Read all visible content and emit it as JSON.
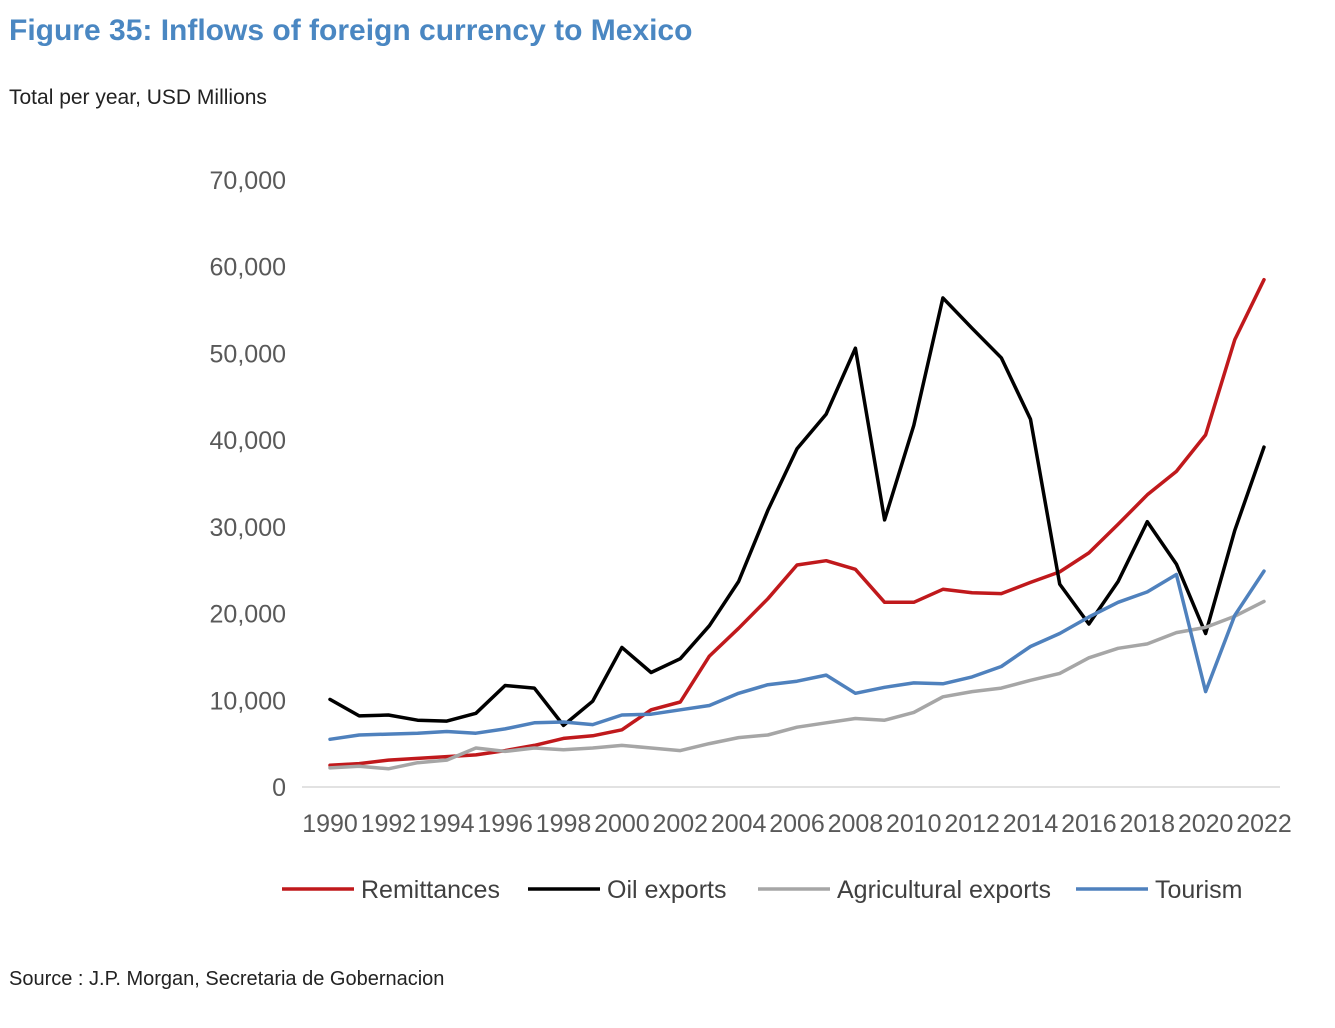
{
  "title": "Figure 35: Inflows of foreign currency to Mexico",
  "subtitle": "Total per year, USD Millions",
  "source": "Source : J.P. Morgan, Secretaria de Gobernacion",
  "chart_data": {
    "type": "line",
    "title": "",
    "xlabel": "",
    "ylabel": "",
    "ylim": [
      0,
      70000
    ],
    "yticks": [
      0,
      10000,
      20000,
      30000,
      40000,
      50000,
      60000,
      70000
    ],
    "ytick_labels": [
      "0",
      "10,000",
      "20,000",
      "30,000",
      "40,000",
      "50,000",
      "60,000",
      "70,000"
    ],
    "x": [
      1990,
      1991,
      1992,
      1993,
      1994,
      1995,
      1996,
      1997,
      1998,
      1999,
      2000,
      2001,
      2002,
      2003,
      2004,
      2005,
      2006,
      2007,
      2008,
      2009,
      2010,
      2011,
      2012,
      2013,
      2014,
      2015,
      2016,
      2017,
      2018,
      2019,
      2020,
      2021,
      2022
    ],
    "xtick_labels": [
      "1990",
      "1992",
      "1994",
      "1996",
      "1998",
      "2000",
      "2002",
      "2004",
      "2006",
      "2008",
      "2010",
      "2012",
      "2014",
      "2016",
      "2018",
      "2020",
      "2022"
    ],
    "grid": false,
    "legend_position": "bottom",
    "series": [
      {
        "name": "Remittances",
        "color": "#c0191c",
        "values": [
          2500,
          2700,
          3100,
          3300,
          3500,
          3700,
          4200,
          4800,
          5600,
          5900,
          6600,
          8900,
          9800,
          15100,
          18300,
          21700,
          25600,
          26100,
          25100,
          21300,
          21300,
          22800,
          22400,
          22300,
          23600,
          24800,
          27000,
          30300,
          33700,
          36400,
          40600,
          51600,
          58500
        ]
      },
      {
        "name": "Oil exports",
        "color": "#000000",
        "values": [
          10100,
          8200,
          8300,
          7700,
          7600,
          8500,
          11700,
          11400,
          7100,
          9900,
          16100,
          13200,
          14800,
          18600,
          23700,
          31900,
          39000,
          43000,
          50600,
          30800,
          41700,
          56400,
          52900,
          49500,
          42400,
          23400,
          18800,
          23700,
          30600,
          25700,
          17700,
          29600,
          39200
        ]
      },
      {
        "name": "Agricultural exports",
        "color": "#a6a6a6",
        "values": [
          2200,
          2400,
          2100,
          2800,
          3100,
          4500,
          4100,
          4500,
          4300,
          4500,
          4800,
          4500,
          4200,
          5000,
          5700,
          6000,
          6900,
          7400,
          7900,
          7700,
          8600,
          10400,
          11000,
          11400,
          12300,
          13100,
          14900,
          16000,
          16500,
          17800,
          18400,
          19700,
          21400
        ]
      },
      {
        "name": "Tourism",
        "color": "#4f81bd",
        "values": [
          5500,
          6000,
          6100,
          6200,
          6400,
          6200,
          6700,
          7400,
          7500,
          7200,
          8300,
          8400,
          8900,
          9400,
          10800,
          11800,
          12200,
          12900,
          10800,
          11500,
          12000,
          11900,
          12700,
          13900,
          16200,
          17700,
          19600,
          21300,
          22500,
          24500,
          11000,
          19800,
          24900
        ]
      }
    ]
  }
}
